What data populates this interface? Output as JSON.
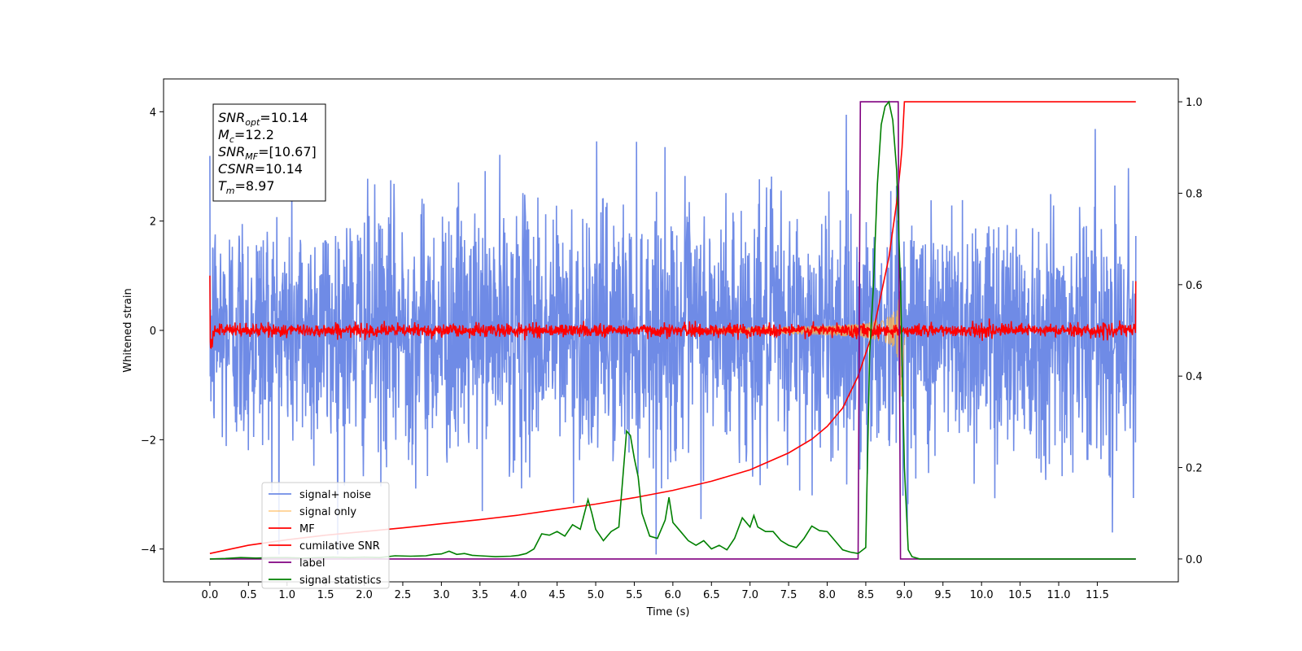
{
  "chart_data": {
    "type": "line",
    "xlabel": "Time (s)",
    "ylabel": "Whitened strain",
    "xlim": [
      -0.6,
      12.55
    ],
    "ylim_left": [
      -4.6,
      4.6
    ],
    "ylim_right": [
      -0.05,
      1.05
    ],
    "x_ticks": [
      0.0,
      0.5,
      1.0,
      1.5,
      2.0,
      2.5,
      3.0,
      3.5,
      4.0,
      4.5,
      5.0,
      5.5,
      6.0,
      6.5,
      7.0,
      7.5,
      8.0,
      8.5,
      9.0,
      9.5,
      10.0,
      10.5,
      11.0,
      11.5
    ],
    "x_tick_labels": [
      "0.0",
      "0.5",
      "1.0",
      "1.5",
      "2.0",
      "2.5",
      "3.0",
      "3.5",
      "4.0",
      "4.5",
      "5.0",
      "5.5",
      "6.0",
      "6.5",
      "7.0",
      "7.5",
      "8.0",
      "8.5",
      "9.0",
      "9.5",
      "10.0",
      "10.5",
      "11.0",
      "11.5"
    ],
    "y_left_ticks": [
      -4,
      -2,
      0,
      2,
      4
    ],
    "y_left_tick_labels": [
      "−4",
      "−2",
      "0",
      "2",
      "4"
    ],
    "y_right_ticks": [
      0.0,
      0.2,
      0.4,
      0.6,
      0.8,
      1.0
    ],
    "y_right_tick_labels": [
      "0.0",
      "0.2",
      "0.4",
      "0.6",
      "0.8",
      "1.0"
    ],
    "legend_placement": "lower-left",
    "grid": false,
    "colors": {
      "signal_noise": "#6f8be6",
      "signal_only": "#ffb347",
      "mf": "#ff0000",
      "cumulative": "#ff0000",
      "label": "#800080",
      "statistics": "#008000"
    },
    "series": [
      {
        "name": "signal+ noise",
        "axis": "left",
        "kind": "noise",
        "description_amplitude": [
          -4,
          4
        ]
      },
      {
        "name": "signal only",
        "axis": "left",
        "kind": "chirp",
        "merger_time": 8.97
      },
      {
        "name": "MF",
        "axis": "left",
        "kind": "noise-small"
      },
      {
        "name": "cumilative SNR",
        "axis": "right",
        "x": [
          0.0,
          0.5,
          1.0,
          1.5,
          2.0,
          2.5,
          3.0,
          3.5,
          4.0,
          4.5,
          5.0,
          5.5,
          6.0,
          6.5,
          7.0,
          7.5,
          7.8,
          8.0,
          8.2,
          8.4,
          8.6,
          8.7,
          8.8,
          8.9,
          8.95,
          8.97,
          9.0,
          12.0
        ],
        "y": [
          0.012,
          0.03,
          0.042,
          0.052,
          0.06,
          0.068,
          0.077,
          0.086,
          0.096,
          0.108,
          0.12,
          0.134,
          0.15,
          0.17,
          0.195,
          0.232,
          0.262,
          0.29,
          0.33,
          0.4,
          0.5,
          0.58,
          0.66,
          0.78,
          0.86,
          0.9,
          1.0,
          1.0
        ]
      },
      {
        "name": "label",
        "axis": "right",
        "x": [
          0.0,
          8.4,
          8.43,
          8.92,
          8.95,
          12.0
        ],
        "y": [
          0.0,
          0.0,
          1.0,
          1.0,
          0.0,
          0.0
        ]
      },
      {
        "name": "signal statistics",
        "axis": "right",
        "x": [
          0.0,
          0.2,
          0.4,
          0.6,
          0.8,
          1.0,
          1.2,
          1.4,
          1.6,
          1.8,
          2.0,
          2.2,
          2.4,
          2.6,
          2.8,
          2.9,
          3.0,
          3.1,
          3.2,
          3.3,
          3.4,
          3.5,
          3.7,
          3.9,
          4.0,
          4.1,
          4.2,
          4.3,
          4.4,
          4.5,
          4.6,
          4.7,
          4.8,
          4.9,
          4.95,
          5.0,
          5.1,
          5.2,
          5.3,
          5.4,
          5.45,
          5.5,
          5.55,
          5.6,
          5.7,
          5.8,
          5.9,
          5.95,
          6.0,
          6.1,
          6.2,
          6.3,
          6.4,
          6.5,
          6.6,
          6.7,
          6.8,
          6.9,
          7.0,
          7.05,
          7.1,
          7.2,
          7.3,
          7.4,
          7.5,
          7.6,
          7.7,
          7.8,
          7.9,
          8.0,
          8.1,
          8.2,
          8.3,
          8.4,
          8.5,
          8.55,
          8.6,
          8.65,
          8.7,
          8.75,
          8.8,
          8.85,
          8.9,
          8.95,
          9.0,
          9.05,
          9.1,
          9.2,
          12.0
        ],
        "y": [
          0.0,
          0.001,
          0.003,
          0.002,
          0.003,
          0.003,
          0.002,
          0.003,
          0.004,
          0.003,
          0.004,
          0.003,
          0.007,
          0.006,
          0.007,
          0.01,
          0.011,
          0.017,
          0.01,
          0.012,
          0.008,
          0.007,
          0.005,
          0.006,
          0.008,
          0.012,
          0.022,
          0.055,
          0.052,
          0.06,
          0.05,
          0.075,
          0.065,
          0.13,
          0.1,
          0.065,
          0.04,
          0.06,
          0.07,
          0.28,
          0.27,
          0.22,
          0.18,
          0.1,
          0.05,
          0.045,
          0.085,
          0.135,
          0.08,
          0.06,
          0.04,
          0.03,
          0.04,
          0.022,
          0.03,
          0.02,
          0.045,
          0.09,
          0.07,
          0.095,
          0.07,
          0.06,
          0.06,
          0.04,
          0.03,
          0.025,
          0.045,
          0.072,
          0.062,
          0.06,
          0.04,
          0.02,
          0.015,
          0.012,
          0.025,
          0.45,
          0.6,
          0.82,
          0.95,
          0.99,
          1.0,
          0.96,
          0.85,
          0.6,
          0.2,
          0.02,
          0.005,
          0.0,
          0.0
        ]
      }
    ],
    "annotation_lines": [
      {
        "label": "SNR",
        "sub": "opt",
        "value": "=10.14"
      },
      {
        "label": "M",
        "sub": "c",
        "value": "=12.2"
      },
      {
        "label": "SNR",
        "sub": "MF",
        "value": "=[10.67]"
      },
      {
        "label": "CSNR",
        "sub": "",
        "value": "=10.14"
      },
      {
        "label": "T",
        "sub": "m",
        "value": "=8.97"
      }
    ]
  }
}
